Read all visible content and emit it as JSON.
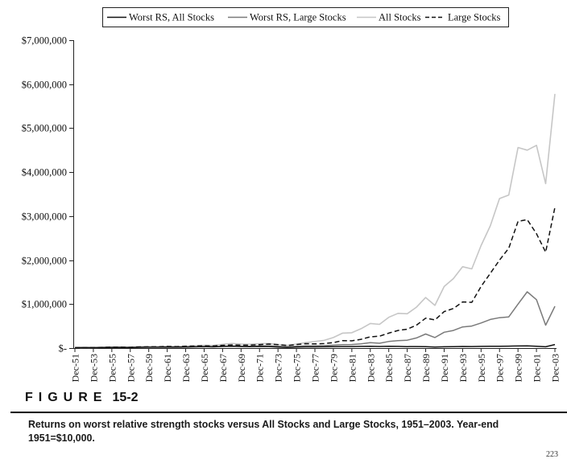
{
  "figure": {
    "label_word": "FIGURE",
    "number": "15-2",
    "caption": "Returns on worst relative strength stocks versus All Stocks and Large Stocks, 1951–2003. Year-end 1951=$10,000.",
    "page_number_partial": "223"
  },
  "chart_data": {
    "type": "line",
    "title": "",
    "xlabel": "",
    "ylabel": "",
    "ylim": [
      0,
      7000000
    ],
    "y_ticks": [
      0,
      1000000,
      2000000,
      3000000,
      4000000,
      5000000,
      6000000,
      7000000
    ],
    "y_tick_labels": [
      "$-",
      "$1,000,000",
      "$2,000,000",
      "$3,000,000",
      "$4,000,000",
      "$5,000,000",
      "$6,000,000",
      "$7,000,000"
    ],
    "x_tick_labels": [
      "Dec-51",
      "Dec-53",
      "Dec-55",
      "Dec-57",
      "Dec-59",
      "Dec-61",
      "Dec-63",
      "Dec-65",
      "Dec-67",
      "Dec-69",
      "Dec-71",
      "Dec-73",
      "Dec-75",
      "Dec-77",
      "Dec-79",
      "Dec-81",
      "Dec-83",
      "Dec-85",
      "Dec-87",
      "Dec-89",
      "Dec-91",
      "Dec-93",
      "Dec-95",
      "Dec-97",
      "Dec-99",
      "Dec-01",
      "Dec-03"
    ],
    "years": [
      1951,
      1952,
      1953,
      1954,
      1955,
      1956,
      1957,
      1958,
      1959,
      1960,
      1961,
      1962,
      1963,
      1964,
      1965,
      1966,
      1967,
      1968,
      1969,
      1970,
      1971,
      1972,
      1973,
      1974,
      1975,
      1976,
      1977,
      1978,
      1979,
      1980,
      1981,
      1982,
      1983,
      1984,
      1985,
      1986,
      1987,
      1988,
      1989,
      1990,
      1991,
      1992,
      1993,
      1994,
      1995,
      1996,
      1997,
      1998,
      1999,
      2000,
      2001,
      2002,
      2003
    ],
    "legend_position": "top",
    "series": [
      {
        "name": "Worst RS, All Stocks",
        "color": "#111111",
        "dash": "solid",
        "values": [
          10000,
          10500,
          10000,
          14000,
          16000,
          16500,
          14000,
          19000,
          20000,
          19500,
          24000,
          21000,
          24000,
          27000,
          31000,
          28000,
          36000,
          42000,
          34000,
          33000,
          36000,
          34000,
          24000,
          17000,
          23000,
          28000,
          28000,
          29000,
          32000,
          35000,
          34000,
          38000,
          42000,
          37000,
          40000,
          38000,
          32000,
          35000,
          32000,
          24000,
          30000,
          33000,
          36000,
          34000,
          38000,
          40000,
          42000,
          43000,
          48000,
          50000,
          42000,
          30000,
          80000
        ]
      },
      {
        "name": "Worst RS, Large Stocks",
        "color": "#7a7a7a",
        "dash": "solid",
        "values": [
          10000,
          11000,
          10500,
          15000,
          17000,
          17500,
          15500,
          21000,
          22000,
          22000,
          26000,
          23000,
          27000,
          31000,
          35000,
          32000,
          42000,
          50000,
          44000,
          42000,
          50000,
          52000,
          40000,
          28000,
          40000,
          52000,
          50000,
          55000,
          65000,
          78000,
          80000,
          95000,
          125000,
          110000,
          150000,
          170000,
          180000,
          230000,
          320000,
          240000,
          360000,
          400000,
          480000,
          500000,
          570000,
          650000,
          690000,
          710000,
          1000000,
          1280000,
          1100000,
          520000,
          950000
        ]
      },
      {
        "name": "All Stocks",
        "color": "#c6c6c6",
        "dash": "solid",
        "values": [
          10000,
          11000,
          11000,
          16000,
          19000,
          20000,
          18000,
          27000,
          30000,
          31000,
          40000,
          36000,
          44000,
          52000,
          62000,
          58000,
          85000,
          105000,
          90000,
          85000,
          100000,
          105000,
          80000,
          60000,
          90000,
          125000,
          150000,
          175000,
          240000,
          340000,
          350000,
          440000,
          560000,
          540000,
          700000,
          790000,
          780000,
          930000,
          1150000,
          970000,
          1400000,
          1580000,
          1850000,
          1800000,
          2330000,
          2780000,
          3400000,
          3480000,
          4560000,
          4500000,
          4610000,
          3740000,
          5780000
        ]
      },
      {
        "name": "Large Stocks",
        "color": "#111111",
        "dash": "dashed",
        "values": [
          10000,
          11000,
          11000,
          16000,
          20000,
          21000,
          19000,
          27000,
          29000,
          29000,
          37000,
          33000,
          40000,
          46000,
          52000,
          48000,
          62000,
          72000,
          66000,
          68000,
          78000,
          92000,
          78000,
          58000,
          80000,
          100000,
          95000,
          102000,
          125000,
          170000,
          165000,
          200000,
          255000,
          270000,
          340000,
          400000,
          430000,
          520000,
          680000,
          640000,
          830000,
          900000,
          1050000,
          1040000,
          1400000,
          1700000,
          2000000,
          2270000,
          2880000,
          2920000,
          2600000,
          2180000,
          3200000
        ]
      }
    ]
  }
}
